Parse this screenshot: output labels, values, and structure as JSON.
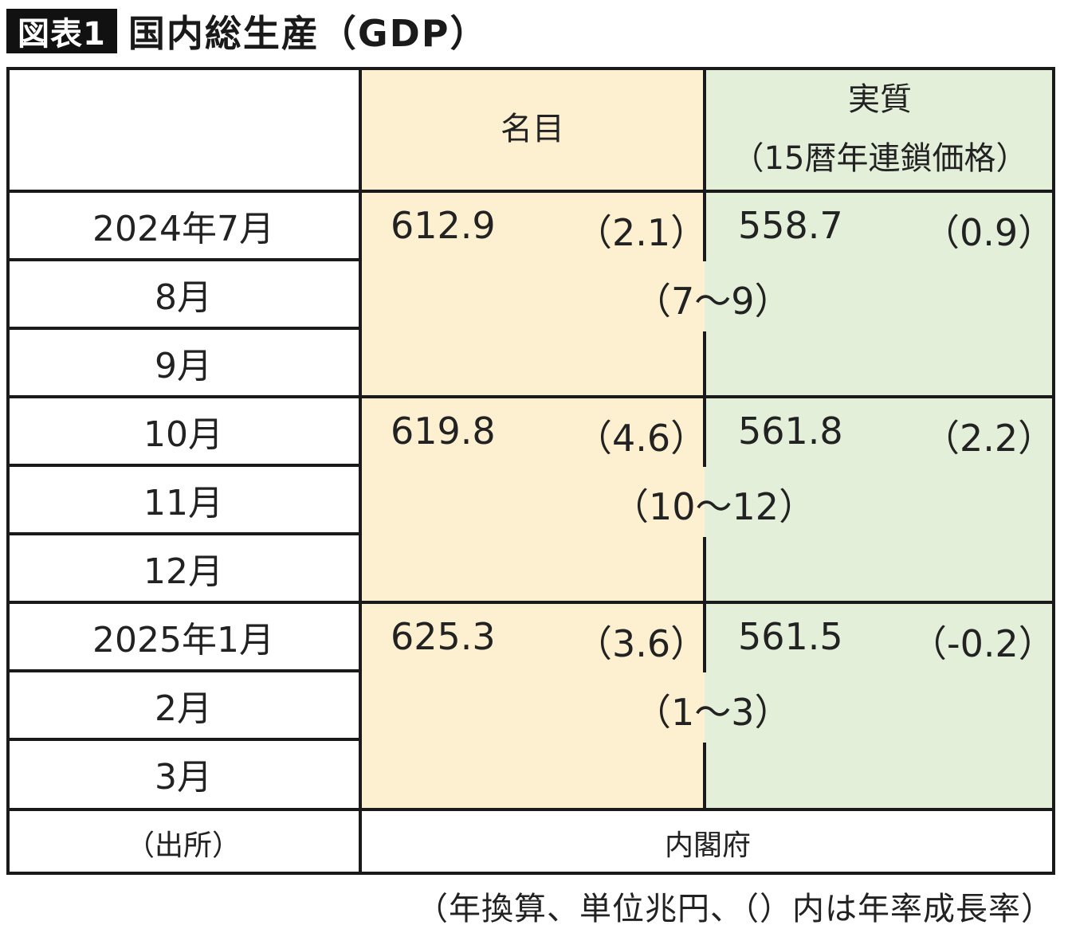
{
  "badge": "図表1",
  "title": "国内総生産（GDP）",
  "header": {
    "nominal": "名目",
    "real_line1": "実質",
    "real_line2": "（15暦年連鎖価格）"
  },
  "rows": [
    {
      "month": "2024年7月"
    },
    {
      "month": "8月"
    },
    {
      "month": "9月"
    },
    {
      "month": "10月"
    },
    {
      "month": "11月"
    },
    {
      "month": "12月"
    },
    {
      "month": "2025年1月"
    },
    {
      "month": "2月"
    },
    {
      "month": "3月"
    }
  ],
  "quarters": [
    {
      "nominal": "612.9",
      "nominal_rate": "（2.1）",
      "real": "558.7",
      "real_rate": "（0.9）",
      "period": "（7～9）"
    },
    {
      "nominal": "619.8",
      "nominal_rate": "（4.6）",
      "real": "561.8",
      "real_rate": "（2.2）",
      "period": "（10～12）"
    },
    {
      "nominal": "625.3",
      "nominal_rate": "（3.6）",
      "real": "561.5",
      "real_rate": "（-0.2）",
      "period": "（1～3）"
    }
  ],
  "source": {
    "label": "（出所）",
    "value": "内閣府"
  },
  "note": "（年換算、単位兆円、（）内は年率成長率）",
  "colors": {
    "nominal_bg": "#fdf0d0",
    "real_bg": "#e3efd9"
  }
}
